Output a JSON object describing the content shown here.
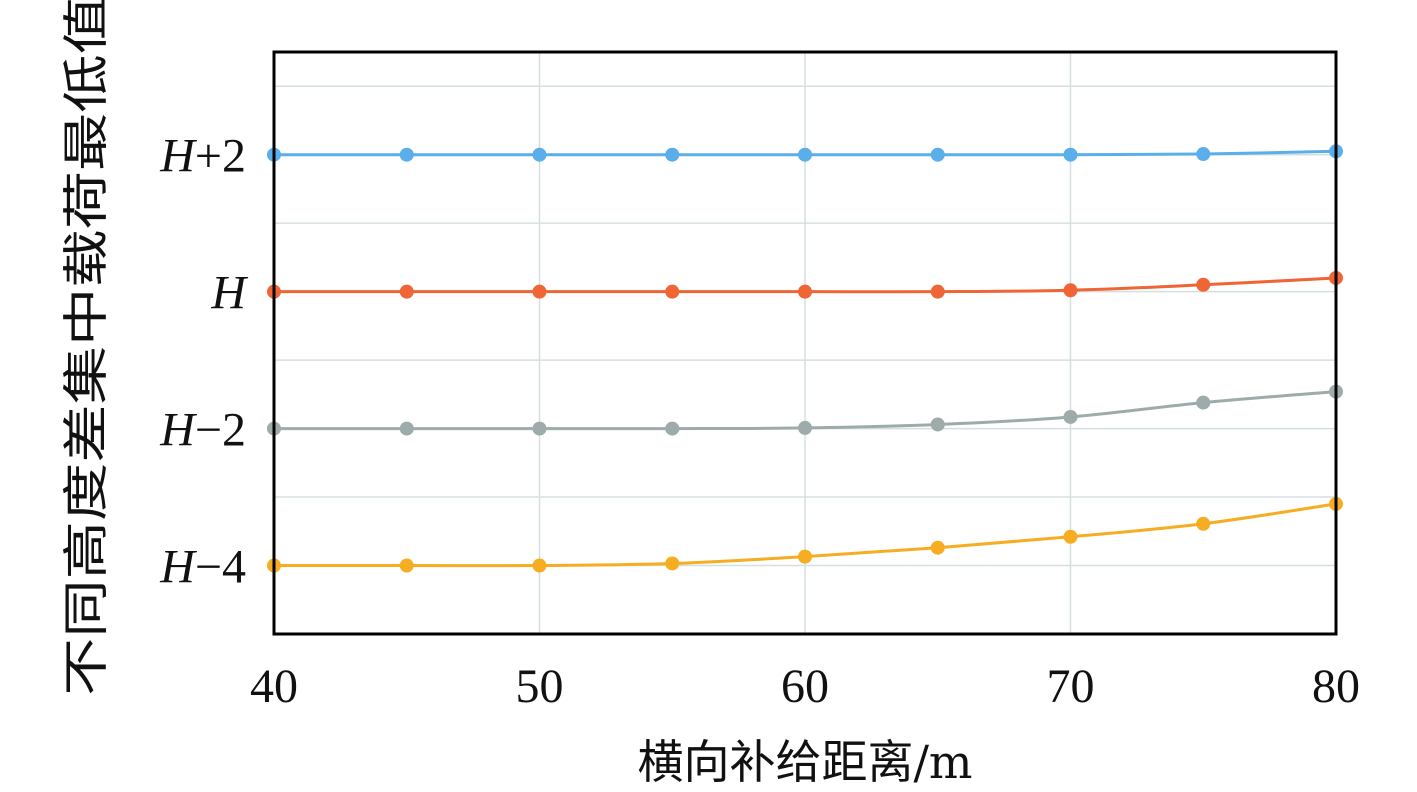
{
  "chart_data": {
    "type": "line",
    "title": "",
    "xlabel": "横向补给距离/m",
    "ylabel": "不同高度差集中载荷最低值",
    "xlim": [
      40,
      80
    ],
    "ylim": [
      -5,
      3.5
    ],
    "x_ticks": [
      40,
      50,
      60,
      70,
      80
    ],
    "y_ticks": [
      {
        "value": 2,
        "label_base": "H",
        "label_suffix": "+2"
      },
      {
        "value": 0,
        "label_base": "H",
        "label_suffix": ""
      },
      {
        "value": -2,
        "label_base": "H",
        "label_suffix": "−2"
      },
      {
        "value": -4,
        "label_base": "H",
        "label_suffix": "−4"
      }
    ],
    "y_minor_grid": [
      3,
      1,
      -1,
      -3
    ],
    "grid": true,
    "legend": "none",
    "x": [
      40,
      45,
      50,
      55,
      60,
      65,
      70,
      75,
      80
    ],
    "series": [
      {
        "color": "#5aaeea",
        "values": [
          2.0,
          2.0,
          2.0,
          2.0,
          2.0,
          2.0,
          2.0,
          2.01,
          2.05
        ]
      },
      {
        "color": "#ef6535",
        "values": [
          0.0,
          0.0,
          0.0,
          0.0,
          0.0,
          0.0,
          0.02,
          0.1,
          0.2
        ]
      },
      {
        "color": "#9eabab",
        "values": [
          -2.0,
          -2.0,
          -2.0,
          -2.0,
          -1.99,
          -1.94,
          -1.83,
          -1.62,
          -1.46
        ]
      },
      {
        "color": "#f6ad22",
        "values": [
          -4.0,
          -4.0,
          -4.0,
          -3.97,
          -3.87,
          -3.74,
          -3.58,
          -3.39,
          -3.1
        ]
      }
    ]
  }
}
